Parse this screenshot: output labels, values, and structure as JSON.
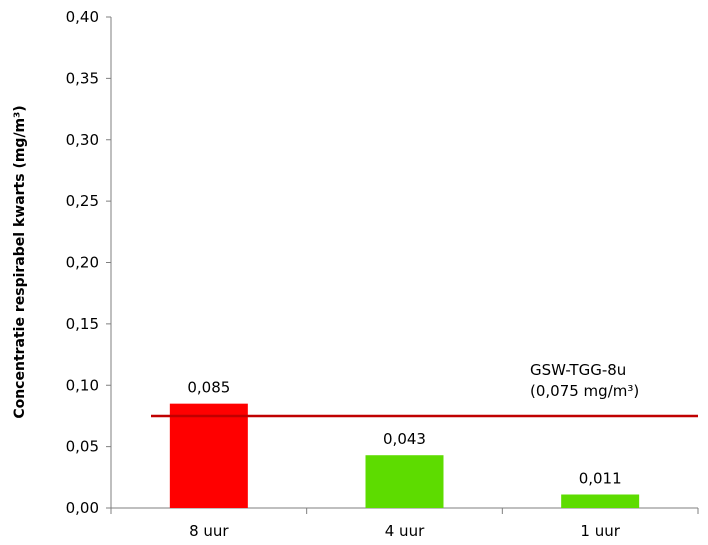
{
  "chart_data": {
    "type": "bar",
    "categories": [
      "8 uur",
      "4 uur",
      "1 uur"
    ],
    "values": [
      0.085,
      0.043,
      0.011
    ],
    "data_labels": [
      "0,085",
      "0,043",
      "0,011"
    ],
    "bar_colors": [
      "#ff0000",
      "#5ddc00",
      "#5ddc00"
    ],
    "title": "",
    "xlabel": "",
    "ylabel": "Concentratie respirabel kwarts (mg/m³)",
    "ylim": [
      0,
      0.4
    ],
    "yticks": [
      0,
      0.05,
      0.1,
      0.15,
      0.2,
      0.25,
      0.3,
      0.35,
      0.4
    ],
    "ytick_labels": [
      "0,00",
      "0,05",
      "0,10",
      "0,15",
      "0,20",
      "0,25",
      "0,30",
      "0,35",
      "0,40"
    ],
    "grid": false,
    "legend": "none",
    "reference_line": {
      "value": 0.075,
      "color": "#c00000",
      "label_line1": "GSW-TGG-8u",
      "label_line2": "(0,075 mg/m³)"
    }
  }
}
